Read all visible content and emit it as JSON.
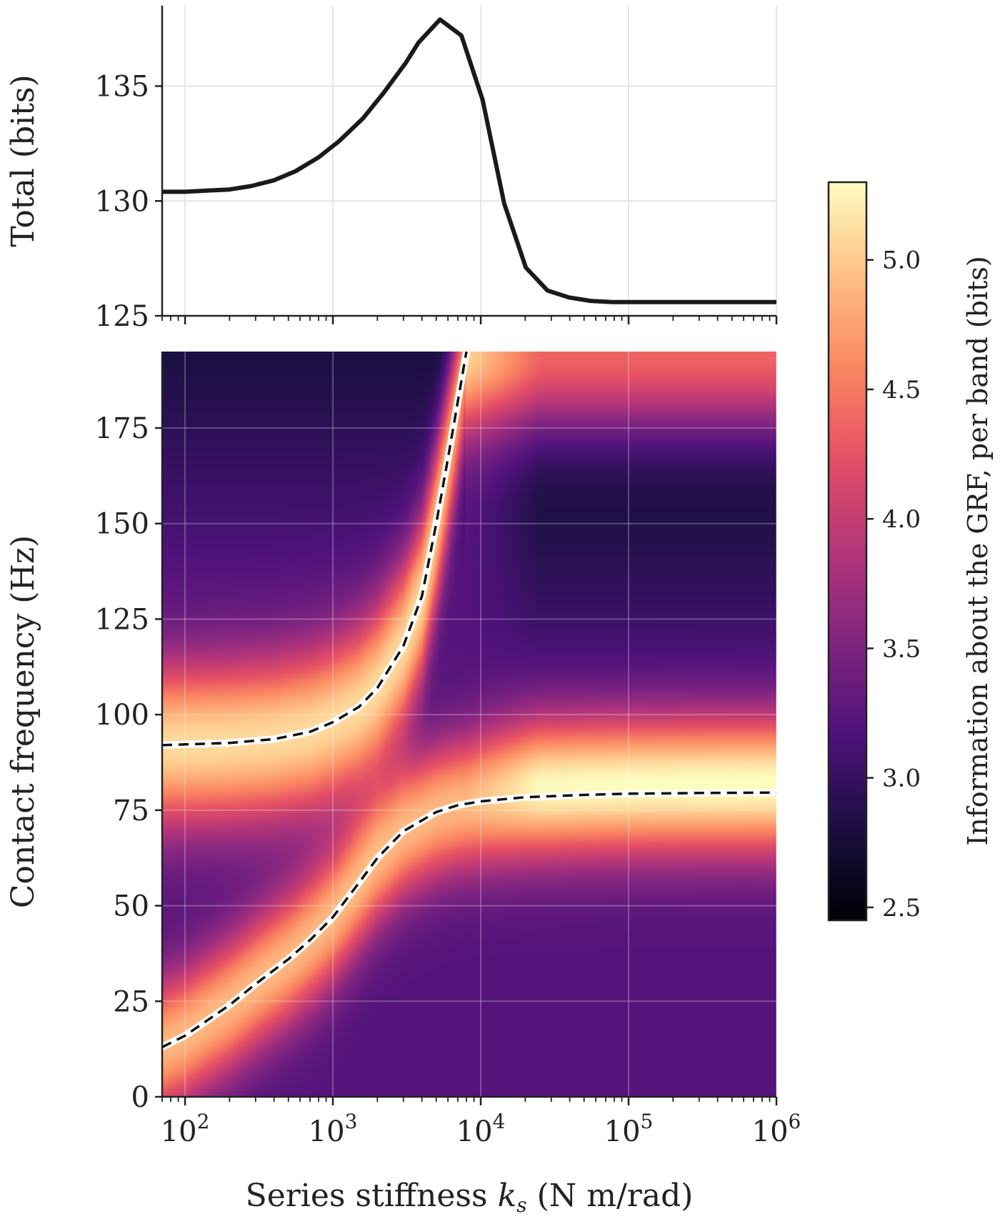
{
  "colors": {
    "line": "#1a1a1a",
    "grid": "#e6e6e6",
    "heatmap_grid": "rgba(255,255,255,0.25)",
    "colormap": "magma"
  },
  "chart_data": [
    {
      "type": "line",
      "title": "",
      "xlabel": "",
      "ylabel": "Total (bits)",
      "xscale": "log",
      "xlim": [
        70,
        1000000
      ],
      "ylim": [
        125,
        138.5
      ],
      "yticks": [
        125,
        130,
        135
      ],
      "xticks": [
        100,
        1000,
        10000,
        100000,
        1000000
      ],
      "grid": true,
      "series": [
        {
          "x": [
            70,
            100,
            140,
            200,
            280,
            400,
            560,
            800,
            1100,
            1600,
            2200,
            3100,
            3800,
            5300,
            7400,
            10300,
            14400,
            20200,
            28300,
            39600,
            55400,
            77500,
            108000,
            200000,
            500000,
            1000000
          ],
          "y": [
            130.4,
            130.4,
            130.45,
            130.5,
            130.65,
            130.9,
            131.3,
            131.9,
            132.6,
            133.6,
            134.7,
            136.0,
            136.9,
            137.9,
            137.2,
            134.4,
            129.9,
            127.1,
            126.1,
            125.8,
            125.65,
            125.6,
            125.6,
            125.6,
            125.6,
            125.6
          ]
        }
      ]
    },
    {
      "type": "heatmap",
      "xlabel": "Series stiffness k_s (N m/rad)",
      "ylabel": "Contact frequency (Hz)",
      "xscale": "log",
      "xlim": [
        70,
        1000000
      ],
      "ylim": [
        0,
        195
      ],
      "yticks": [
        0,
        25,
        50,
        75,
        100,
        125,
        150,
        175
      ],
      "xticks": [
        "10^2",
        "10^3",
        "10^4",
        "10^5",
        "10^6"
      ],
      "grid": true,
      "colorbar": {
        "label": "Information about the GRF, per band (bits)",
        "range": [
          2.45,
          5.3
        ],
        "ticks": [
          2.5,
          3.0,
          3.5,
          4.0,
          4.5,
          5.0
        ]
      },
      "mode_curves": [
        {
          "name": "upper",
          "x": [
            70,
            100,
            200,
            400,
            700,
            1000,
            1500,
            2000,
            3000,
            4000,
            5000,
            6000,
            7000,
            8000
          ],
          "y": [
            92,
            92.2,
            92.6,
            93.6,
            95.5,
            98,
            102,
            107,
            118,
            131,
            150,
            167,
            182,
            195
          ]
        },
        {
          "name": "lower",
          "x": [
            70,
            100,
            200,
            300,
            500,
            700,
            1000,
            1500,
            2000,
            3000,
            5000,
            7000,
            10000,
            20000,
            50000,
            100000,
            300000,
            1000000
          ],
          "y": [
            13,
            16,
            24,
            29.5,
            36,
            41,
            47,
            56,
            62.5,
            69.5,
            74.5,
            76.3,
            77.3,
            78.4,
            79.0,
            79.3,
            79.5,
            79.6
          ]
        }
      ]
    }
  ],
  "labels": {
    "top_ylabel": "Total (bits)",
    "bottom_ylabel": "Contact frequency (Hz)",
    "xlabel_prefix": "Series stiffness ",
    "xlabel_var": "k",
    "xlabel_sub": "s",
    "xlabel_suffix": " (N m/rad)",
    "cb_label": "Information about the GRF, per band (bits)",
    "top_yticks": [
      "125",
      "130",
      "135"
    ],
    "bottom_yticks": [
      "0",
      "25",
      "50",
      "75",
      "100",
      "125",
      "150",
      "175"
    ],
    "cb_ticks": [
      "2.5",
      "3.0",
      "3.5",
      "4.0",
      "4.5",
      "5.0"
    ],
    "x_base": "10",
    "x_exps": [
      "2",
      "3",
      "4",
      "5",
      "6"
    ]
  }
}
